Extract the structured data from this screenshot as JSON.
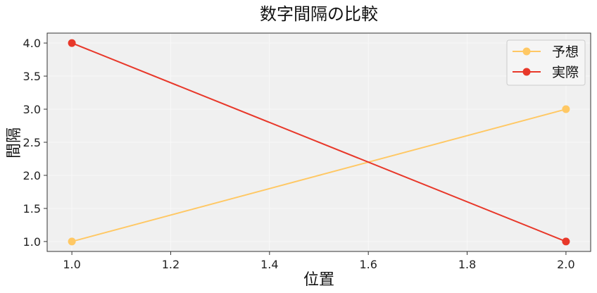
{
  "chart_data": {
    "type": "line",
    "title": "数字間隔の比較",
    "xlabel": "位置",
    "ylabel": "間隔",
    "xlim": [
      0.95,
      2.05
    ],
    "ylim": [
      0.85,
      4.15
    ],
    "xticks": [
      "1.0",
      "1.2",
      "1.4",
      "1.6",
      "1.8",
      "2.0"
    ],
    "yticks": [
      "1.0",
      "1.5",
      "2.0",
      "2.5",
      "3.0",
      "3.5",
      "4.0"
    ],
    "grid": true,
    "legend_position": "top-right",
    "series": [
      {
        "name": "予想",
        "x": [
          1.0,
          2.0
        ],
        "y": [
          1.0,
          3.0
        ],
        "color": "#FFC864"
      },
      {
        "name": "実際",
        "x": [
          1.0,
          2.0
        ],
        "y": [
          4.0,
          1.0
        ],
        "color": "#E8382A"
      }
    ]
  }
}
